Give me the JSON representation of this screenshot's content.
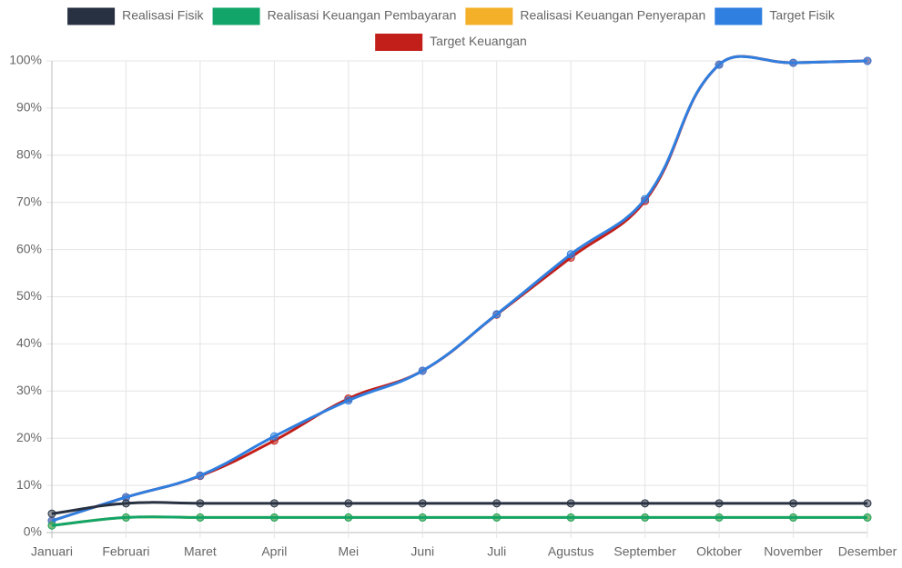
{
  "chart_data": {
    "type": "line",
    "categories": [
      "Januari",
      "Februari",
      "Maret",
      "April",
      "Mei",
      "Juni",
      "Juli",
      "Agustus",
      "September",
      "Oktober",
      "November",
      "Desember"
    ],
    "series": [
      {
        "name": "Realisasi Fisik",
        "color": "#283142",
        "values": [
          4,
          6.2,
          6.2,
          6.2,
          6.2,
          6.2,
          6.2,
          6.2,
          6.2,
          6.2,
          6.2,
          6.2
        ]
      },
      {
        "name": "Realisasi Keuangan Pembayaran",
        "color": "#12a56a",
        "values": [
          1.5,
          3.2,
          3.2,
          3.2,
          3.2,
          3.2,
          3.2,
          3.2,
          3.2,
          3.2,
          3.2,
          3.2
        ]
      },
      {
        "name": "Realisasi Keuangan Penyerapan",
        "color": "#f5b02a",
        "values": [
          1.5,
          3.2,
          3.2,
          3.2,
          3.2,
          3.2,
          3.2,
          3.2,
          3.2,
          3.2,
          3.2,
          3.2
        ]
      },
      {
        "name": "Target Fisik",
        "color": "#2f7fe0",
        "values": [
          2.5,
          7.5,
          12.1,
          20.4,
          28,
          34.3,
          46.3,
          59,
          70.7,
          99.2,
          99.6,
          100
        ]
      },
      {
        "name": "Target Keuangan",
        "color": "#c21f1a",
        "values": [
          2.5,
          7.5,
          12,
          19.5,
          28.4,
          34.3,
          46.2,
          58.3,
          70.3,
          99.2,
          99.6,
          100
        ]
      }
    ],
    "ylim": [
      0,
      100
    ],
    "yticks": [
      {
        "value": 0,
        "label": "0%"
      },
      {
        "value": 10,
        "label": "10%"
      },
      {
        "value": 20,
        "label": "20%"
      },
      {
        "value": 30,
        "label": "30%"
      },
      {
        "value": 40,
        "label": "40%"
      },
      {
        "value": 50,
        "label": "50%"
      },
      {
        "value": 60,
        "label": "60%"
      },
      {
        "value": 70,
        "label": "70%"
      },
      {
        "value": 80,
        "label": "80%"
      },
      {
        "value": 90,
        "label": "90%"
      },
      {
        "value": 100,
        "label": "100%"
      }
    ],
    "grid": true,
    "legend": "top"
  }
}
